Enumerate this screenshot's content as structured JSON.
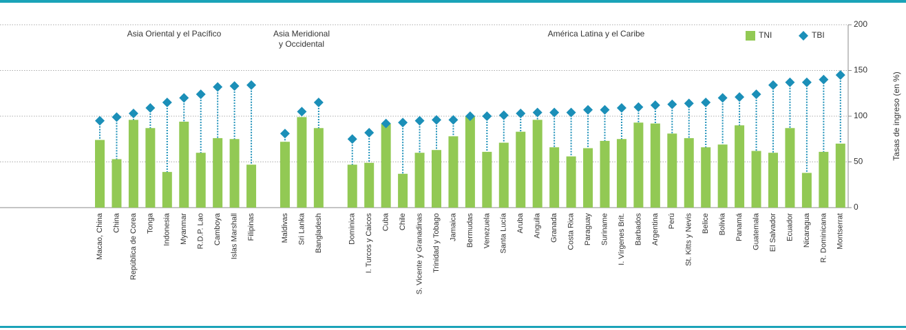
{
  "chart_data": {
    "type": "bar",
    "y_axis_label": "Tasas de ingreso (en %)",
    "annotations": [
      "Asia Oriental y el Pacífico",
      "Asia Meridional",
      "y Occidental",
      "América Latina y el Caribe"
    ],
    "categories": [
      "Macao, China",
      "China",
      "República de Corea",
      "Tonga",
      "Indonesia",
      "Myanmar",
      "R.D.P. Lao",
      "Camboya",
      "Islas Marshall",
      "Filipinas",
      null,
      "Maldivas",
      "Sri Lanka",
      "Bangladesh",
      null,
      "Dominica",
      "I. Turcos y Caicos",
      "Cuba",
      "Chile",
      "S. Vicente y Granadinas",
      "Trinidad y Tobago",
      "Jamaica",
      "Bermudas",
      "Venezuela",
      "Santa Lucía",
      "Aruba",
      "Anguila",
      "Granada",
      "Costa Rica",
      "Paraguay",
      "Suriname",
      "I. Vírgenes Brit.",
      "Barbados",
      "Argentina",
      "Perú",
      "St. Kitts y Nevis",
      "Belice",
      "Bolivia",
      "Panamá",
      "Guatemala",
      "El Salvador",
      "Ecuador",
      "Nicaragua",
      "R. Dominicana",
      "Montserrat"
    ],
    "series": [
      {
        "name": "TNI",
        "color": "#92c954",
        "values": [
          74,
          53,
          96,
          87,
          39,
          94,
          60,
          76,
          75,
          47,
          null,
          72,
          99,
          87,
          null,
          47,
          49,
          92,
          37,
          60,
          63,
          78,
          100,
          61,
          71,
          83,
          96,
          66,
          56,
          65,
          73,
          75,
          93,
          92,
          81,
          76,
          66,
          69,
          90,
          62,
          60,
          87,
          38,
          61,
          70
        ]
      },
      {
        "name": "TBI",
        "color": "#1b8fb8",
        "values": [
          95,
          99,
          103,
          109,
          115,
          120,
          124,
          132,
          133,
          134,
          null,
          81,
          105,
          115,
          null,
          75,
          82,
          92,
          93,
          95,
          96,
          96,
          100,
          100,
          101,
          103,
          104,
          104,
          104,
          107,
          107,
          109,
          110,
          112,
          113,
          114,
          115,
          120,
          121,
          124,
          134,
          137,
          137,
          140,
          145
        ]
      }
    ],
    "ylim": [
      0,
      200
    ],
    "yticks": [
      0,
      50,
      100,
      150,
      200
    ],
    "grid": true,
    "legend": "top-right"
  }
}
